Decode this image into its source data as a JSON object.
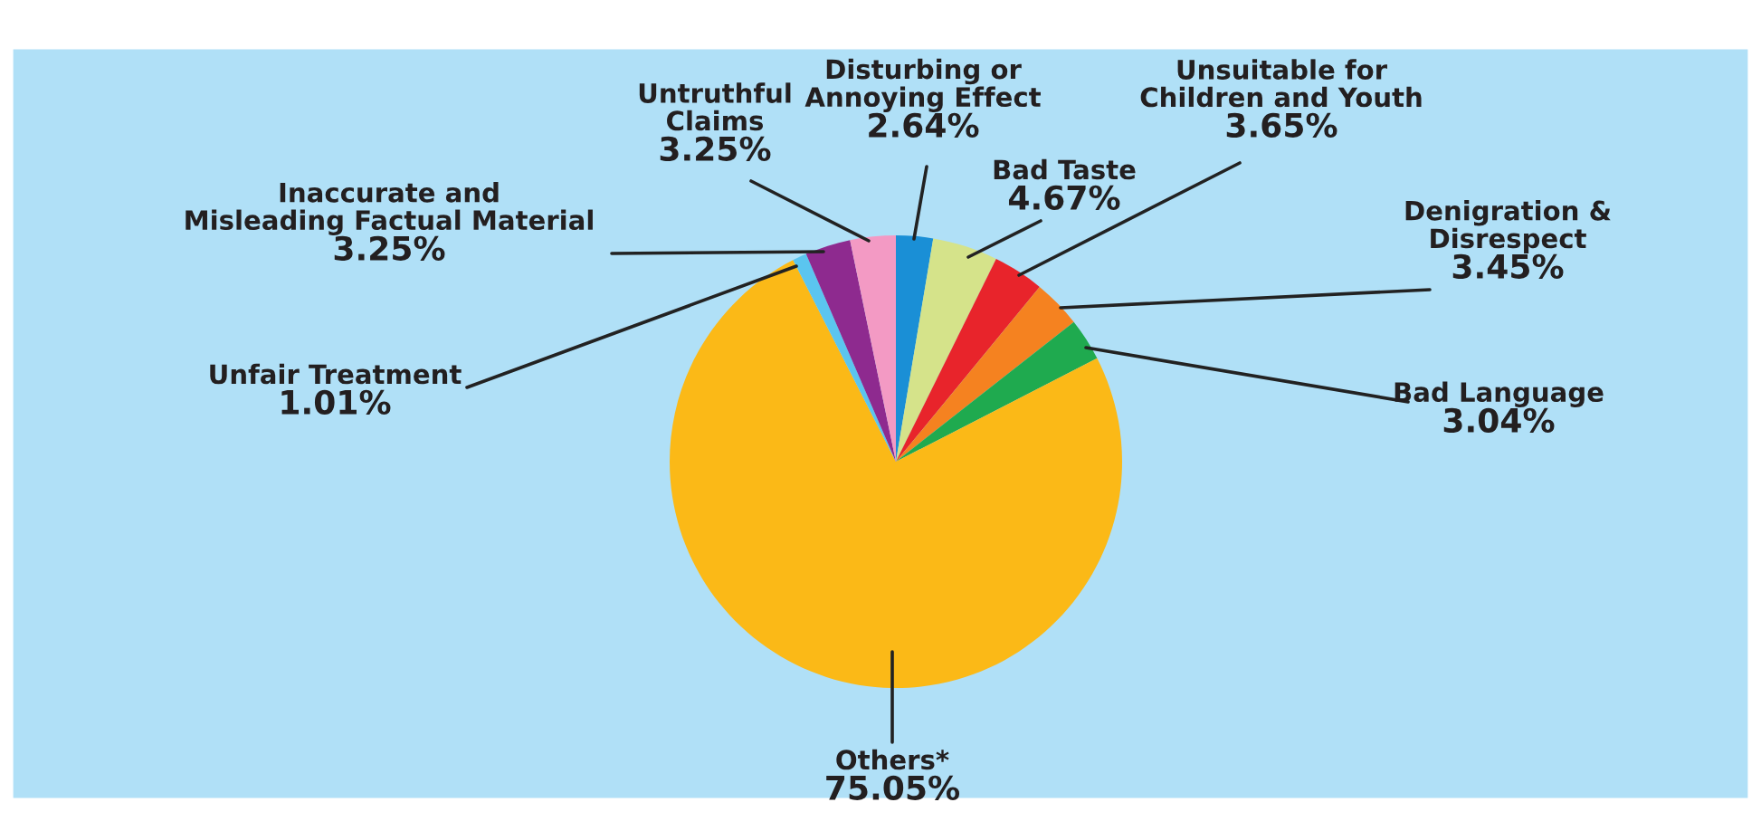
{
  "chart_data": {
    "type": "pie",
    "categories": [
      "Disturbing or\nAnnoying Effect",
      "Bad Taste",
      "Unsuitable for\nChildren and Youth",
      "Denigration &\nDisrespect",
      "Bad Language",
      "Others*",
      "Unfair Treatment",
      "Inaccurate and\nMisleading Factual Material",
      "Untruthful\nClaims"
    ],
    "values": [
      2.64,
      4.67,
      3.65,
      3.45,
      3.04,
      75.05,
      1.01,
      3.25,
      3.25
    ],
    "colors": [
      "#1a8fd6",
      "#d5e38a",
      "#e8242b",
      "#f58220",
      "#1faa4f",
      "#fbb917",
      "#5bc5ef",
      "#8e2a8f",
      "#f39ac4"
    ],
    "value_labels": [
      "2.64%",
      "4.67%",
      "3.65%",
      "3.45%",
      "3.04%",
      "75.05%",
      "1.01%",
      "3.25%",
      "3.25%"
    ],
    "legend": false
  }
}
